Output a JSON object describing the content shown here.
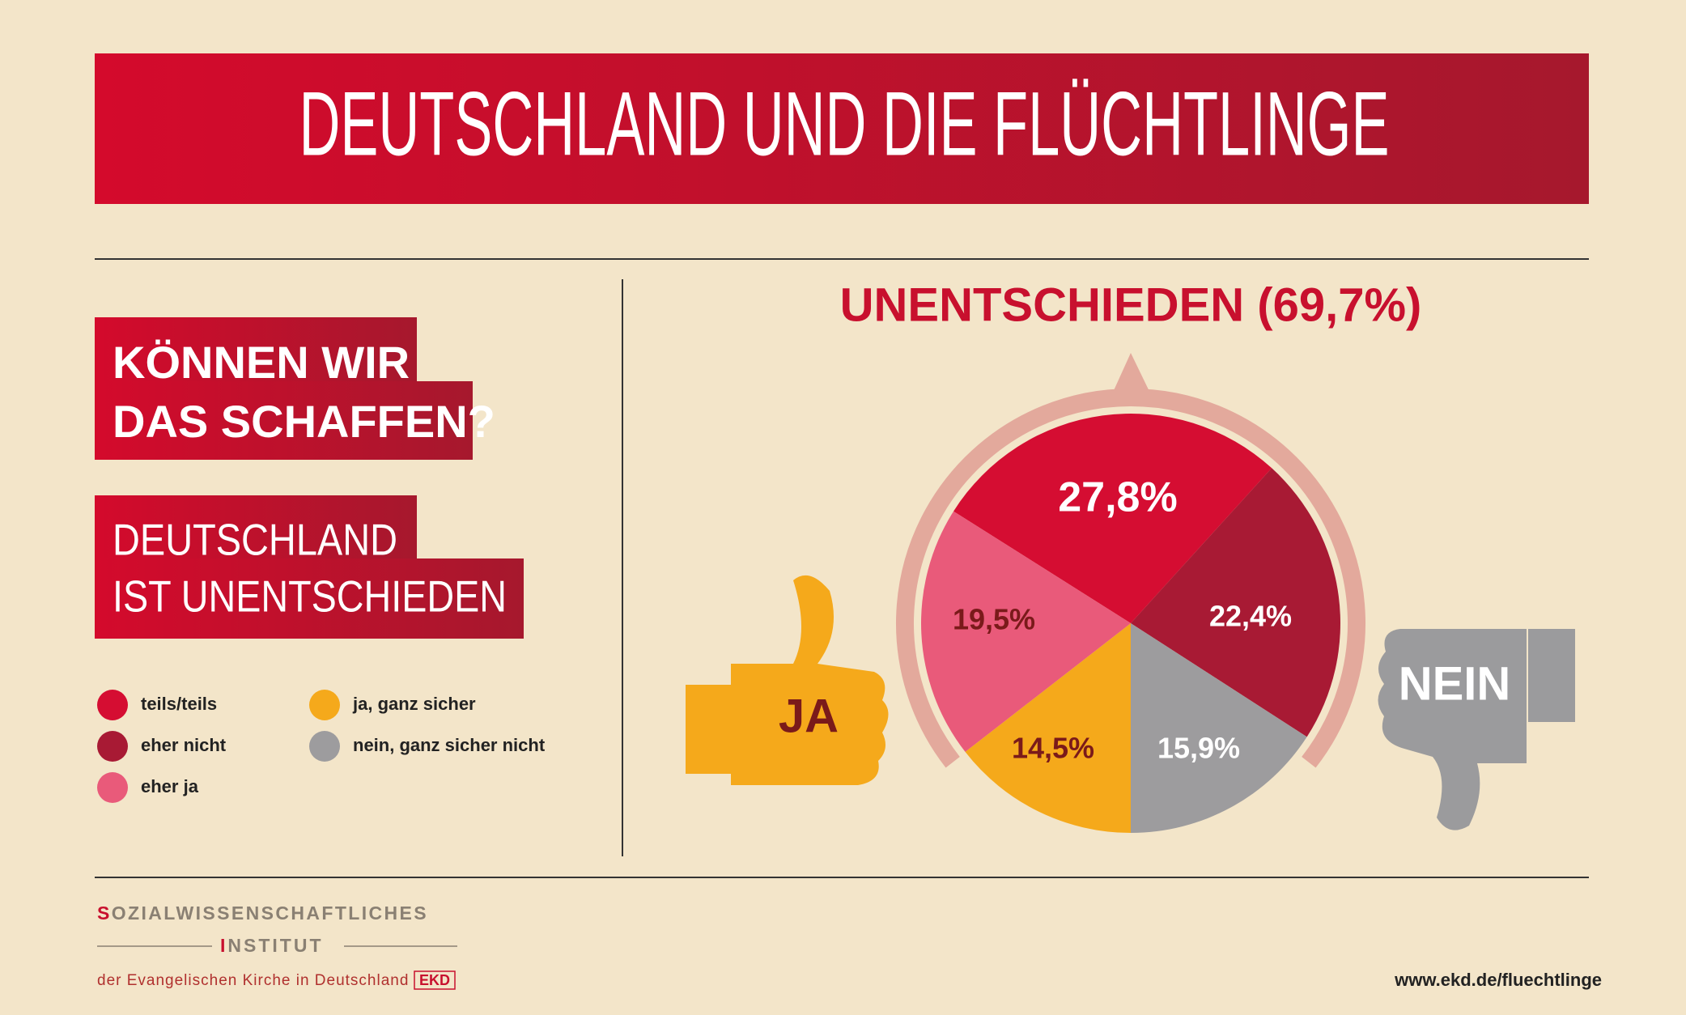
{
  "chart_data": {
    "type": "pie",
    "title": "DEUTSCHLAND UND DIE FLÜCHTLINGE",
    "subtitle": "UNENTSCHIEDEN (69,7%)",
    "categories": [
      "teils/teils",
      "eher nicht",
      "nein, ganz sicher nicht",
      "ja, ganz sicher",
      "eher ja"
    ],
    "values": [
      27.8,
      22.4,
      15.9,
      14.5,
      19.5
    ],
    "value_labels": [
      "27,8%",
      "22,4%",
      "15,9%",
      "14,5%",
      "19,5%"
    ],
    "colors": [
      "#d50d32",
      "#a81a34",
      "#9d9c9e",
      "#f5a91b",
      "#e95a7a"
    ]
  },
  "question": [
    "KÖNNEN WIR",
    "DAS SCHAFFEN?"
  ],
  "answer": [
    "DEUTSCHLAND",
    "IST UNENTSCHIEDEN"
  ],
  "thumb_labels": {
    "yes": "JA",
    "no": "NEIN"
  },
  "footer": {
    "institute": [
      "SOZIALWISSENSCHAFTLICHES",
      "INSTITUT"
    ],
    "church": "der Evangelischen Kirche in Deutschland",
    "logo": "EKD",
    "url": "www.ekd.de/fluechtlinge"
  }
}
